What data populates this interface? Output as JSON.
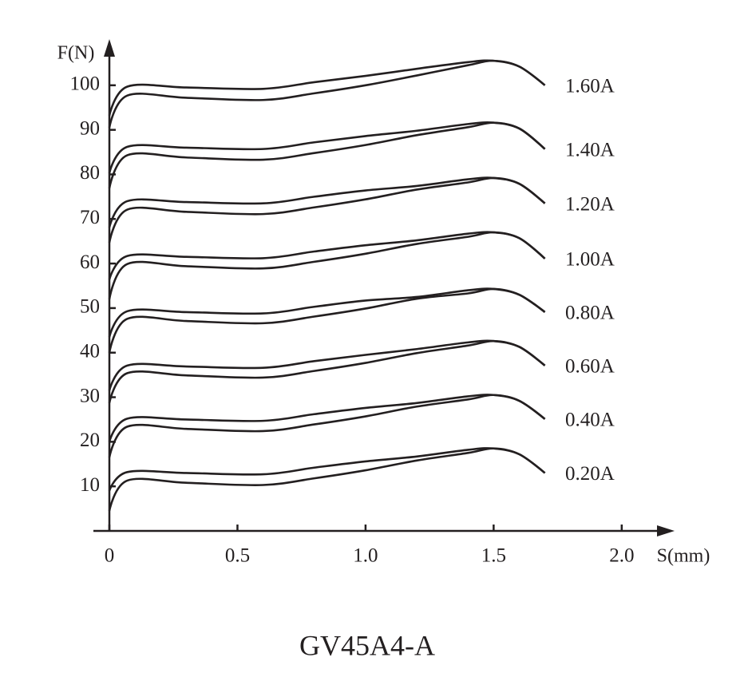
{
  "chart_data": {
    "type": "line",
    "title": "GV45A4-A",
    "x_label": "S(mm)",
    "y_label": "F(N)",
    "x": [
      0,
      0.07,
      0.3,
      0.6,
      0.8,
      1.0,
      1.2,
      1.4,
      1.5,
      1.6,
      1.7
    ],
    "xlim": [
      0,
      2.2
    ],
    "ylim": [
      0,
      110
    ],
    "xticks": [
      0,
      0.5,
      {
        "value": 1,
        "label": "1.0"
      },
      1.5,
      {
        "value": 2,
        "label": "2.0"
      }
    ],
    "yticks": [
      10,
      20,
      30,
      40,
      50,
      60,
      70,
      80,
      90,
      100
    ],
    "grid": false,
    "series": [
      {
        "name": "1.60A",
        "color": "#231f20",
        "curves": [
          {
            "values": [
              93.2,
              99.7,
              99.5,
              99.2,
              100.7,
              102.1,
              103.7,
              105.2,
              105.5,
              104.2,
              100
            ]
          },
          {
            "values": [
              90.5,
              97.7,
              97.2,
              96.7,
              98.2,
              100,
              102.2,
              104.5,
              105.5,
              104.2,
              100
            ]
          }
        ]
      },
      {
        "name": "1.40A",
        "color": "#231f20",
        "curves": [
          {
            "values": [
              80.3,
              86.2,
              86,
              85.7,
              87.2,
              88.6,
              89.8,
              91.3,
              91.6,
              90.3,
              85.7
            ]
          },
          {
            "values": [
              76.9,
              84.3,
              83.8,
              83.3,
              84.8,
              86.6,
              88.8,
              90.6,
              91.6,
              90.3,
              85.7
            ]
          }
        ]
      },
      {
        "name": "1.20A",
        "color": "#231f20",
        "curves": [
          {
            "values": [
              68.1,
              74,
              73.8,
              73.5,
              75,
              76.4,
              77.4,
              78.9,
              79.2,
              77.9,
              73.5
            ]
          },
          {
            "values": [
              64.7,
              72.1,
              71.6,
              71.1,
              72.6,
              74.4,
              76.6,
              78.2,
              79.2,
              77.9,
              73.5
            ]
          }
        ]
      },
      {
        "name": "1.00A",
        "color": "#231f20",
        "curves": [
          {
            "values": [
              56.4,
              61.7,
              61.5,
              61.2,
              62.7,
              64.1,
              65.2,
              66.7,
              67,
              65.7,
              61.1
            ]
          },
          {
            "values": [
              52,
              59.9,
              59.4,
              58.9,
              60.4,
              62.2,
              64.4,
              66,
              67,
              65.7,
              61.1
            ]
          }
        ]
      },
      {
        "name": "0.80A",
        "color": "#231f20",
        "curves": [
          {
            "values": [
              43.5,
              49.3,
              49.1,
              48.8,
              50.3,
              51.7,
              52.5,
              54,
              54.3,
              53,
              49.1
            ]
          },
          {
            "values": [
              40,
              47.6,
              47.1,
              46.6,
              48.1,
              49.9,
              52.1,
              53.3,
              54.3,
              53,
              49.1
            ]
          }
        ]
      },
      {
        "name": "0.60A",
        "color": "#231f20",
        "curves": [
          {
            "values": [
              31.5,
              37.1,
              36.9,
              36.6,
              38.1,
              39.5,
              40.8,
              42.3,
              42.6,
              41.3,
              37.1
            ]
          },
          {
            "values": [
              28.7,
              35.4,
              34.9,
              34.4,
              35.9,
              37.7,
              39.9,
              41.6,
              42.6,
              41.3,
              37.1
            ]
          }
        ]
      },
      {
        "name": "0.40A",
        "color": "#231f20",
        "curves": [
          {
            "values": [
              20,
              25.2,
              25,
              24.7,
              26.2,
              27.6,
              28.7,
              30.2,
              30.5,
              29.2,
              25.1
            ]
          },
          {
            "values": [
              16.5,
              23.4,
              22.9,
              22.4,
              23.9,
              25.7,
              27.9,
              29.5,
              30.5,
              29.2,
              25.1
            ]
          }
        ]
      },
      {
        "name": "0.20A",
        "color": "#231f20",
        "curves": [
          {
            "values": [
              9,
              13.2,
              13,
              12.7,
              14.2,
              15.6,
              16.7,
              18.2,
              18.5,
              17.2,
              13
            ]
          },
          {
            "values": [
              4.5,
              11.3,
              10.8,
              10.3,
              11.8,
              13.6,
              15.8,
              17.5,
              18.5,
              17.2,
              13
            ]
          }
        ]
      }
    ]
  }
}
